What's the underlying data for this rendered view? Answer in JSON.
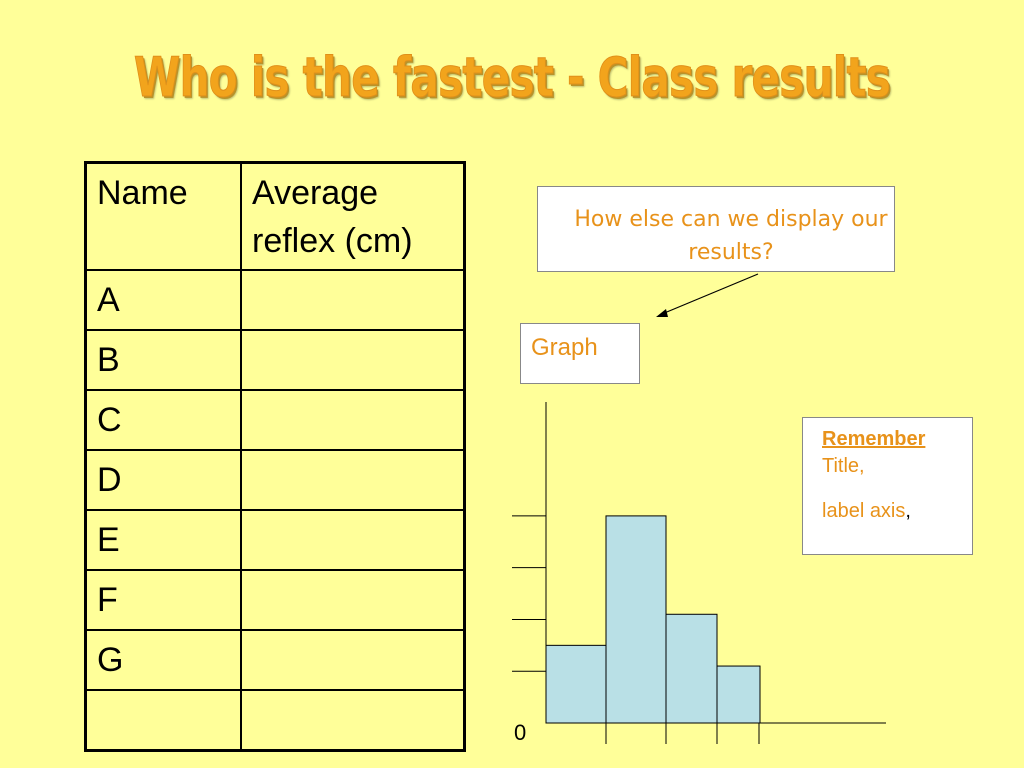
{
  "title": "Who is the fastest - Class results",
  "table": {
    "headers": [
      "Name",
      "Average\nreflex (cm)"
    ],
    "rows": [
      "A",
      "B",
      "C",
      "D",
      "E",
      "F",
      "G",
      ""
    ]
  },
  "question": "How else can we display our results?",
  "graph_label": "Graph",
  "remember": {
    "heading": "Remember",
    "line1": "Title,",
    "line2": "label axis",
    "comma": ","
  },
  "chart_data": {
    "type": "bar",
    "title": "",
    "xlabel": "",
    "ylabel": "",
    "values": [
      1.5,
      4,
      2.1,
      1.1
    ],
    "ylim": [
      0,
      6.2
    ],
    "y_ticks": [
      0,
      1,
      2,
      3,
      4
    ],
    "y_tick_labels": [
      "0"
    ],
    "bar_color": "#b9e0e6"
  },
  "colors": {
    "background": "#ffff99",
    "accent": "#e8921a",
    "bar": "#b9e0e6"
  }
}
